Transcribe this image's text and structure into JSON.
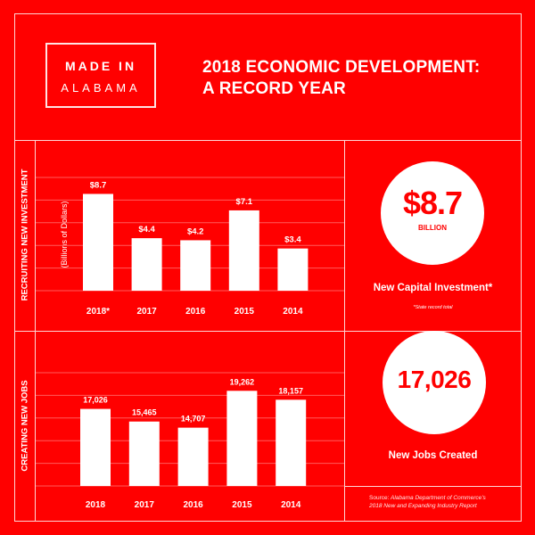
{
  "logo": {
    "line1": "MADE IN",
    "line2": "ALABAMA"
  },
  "header": {
    "title_line1": "2018 ECONOMIC DEVELOPMENT:",
    "title_line2": "A RECORD YEAR"
  },
  "sections": {
    "investment_label": "RECRUITING NEW INVESTMENT",
    "jobs_label": "CREATING NEW JOBS"
  },
  "highlights": {
    "investment": {
      "value": "$8.7",
      "unit": "BILLION",
      "caption": "New Capital Investment*",
      "note": "*State record total"
    },
    "jobs": {
      "value": "17,026",
      "caption": "New Jobs Created"
    }
  },
  "source": {
    "prefix": "Source:",
    "line1": "Alabama Department of Commerce's",
    "line2": "2018 New and Expanding Industry Report"
  },
  "colors": {
    "background": "#FF0000",
    "bars": "#FFFFFF",
    "grid": "#FF5C5C",
    "frame": "#FFD6D6"
  },
  "chart_data": [
    {
      "type": "bar",
      "title": "RECRUITING NEW INVESTMENT",
      "ylabel": "(Billions of Dollars)",
      "xlabel": "",
      "categories": [
        "2018*",
        "2017",
        "2016",
        "2015",
        "2014"
      ],
      "values": [
        8.7,
        4.4,
        4.2,
        7.1,
        3.4
      ],
      "data_labels": [
        "$8.7",
        "$4.4",
        "$4.2",
        "$7.1",
        "$3.4"
      ],
      "ylim": [
        -0.7,
        10.3
      ],
      "grid": true
    },
    {
      "type": "bar",
      "title": "CREATING NEW JOBS",
      "ylabel": "",
      "xlabel": "",
      "categories": [
        "2018",
        "2017",
        "2016",
        "2015",
        "2014"
      ],
      "values": [
        17026,
        15465,
        14707,
        19262,
        18157
      ],
      "data_labels": [
        "17,026",
        "15,465",
        "14,707",
        "19,262",
        "18,157"
      ],
      "ylim": [
        7500,
        21500
      ],
      "grid": true
    }
  ]
}
